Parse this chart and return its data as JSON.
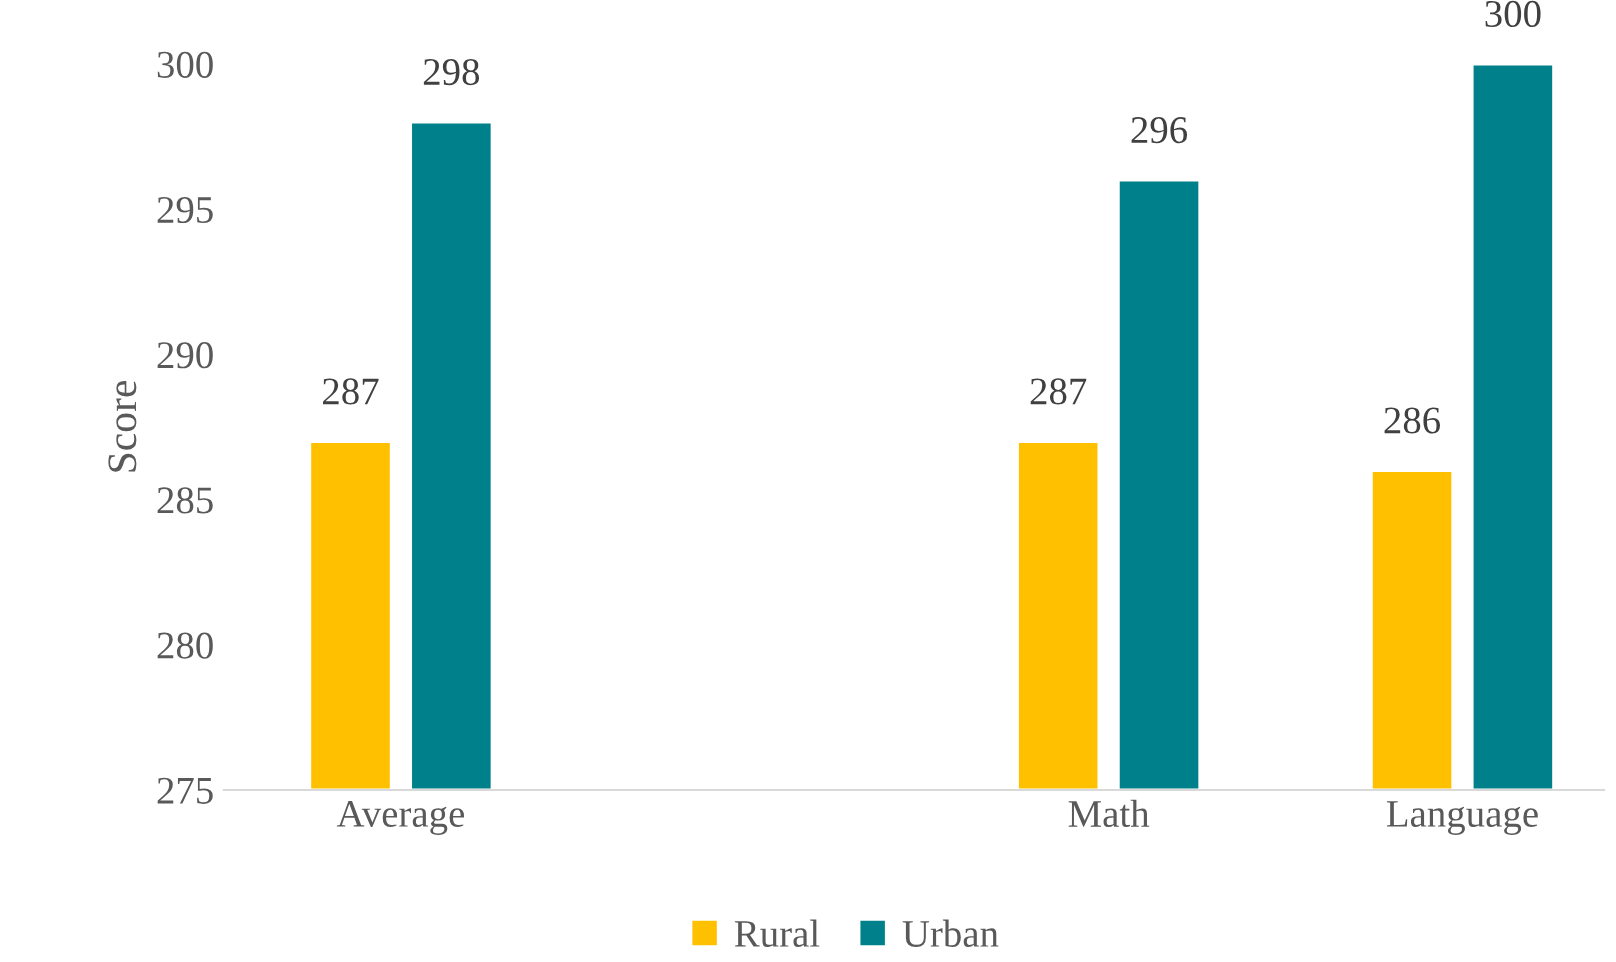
{
  "chart_data": {
    "type": "bar",
    "ylabel": "Score",
    "categories": [
      "Average",
      null,
      "Math",
      "Language"
    ],
    "series": [
      {
        "name": "Rural",
        "color": "#ffc000",
        "values": [
          287,
          null,
          287,
          286
        ]
      },
      {
        "name": "Urban",
        "color": "#00808a",
        "values": [
          298,
          null,
          296,
          300
        ]
      }
    ],
    "ylim": [
      275,
      300
    ],
    "yticks": [
      275,
      280,
      285,
      290,
      295,
      300
    ],
    "grid": false,
    "legend": "bottom",
    "data_labels": true
  }
}
